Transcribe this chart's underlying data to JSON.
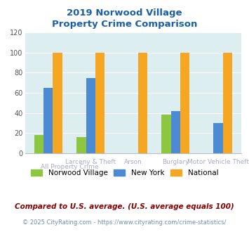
{
  "title_line1": "2019 Norwood Village",
  "title_line2": "Property Crime Comparison",
  "categories": [
    "All Property Crime",
    "Larceny & Theft",
    "Arson",
    "Burglary",
    "Motor Vehicle Theft"
  ],
  "series": {
    "Norwood Village": [
      18,
      16,
      0,
      38,
      0
    ],
    "New York": [
      65,
      75,
      0,
      42,
      30
    ],
    "National": [
      100,
      100,
      100,
      100,
      100
    ]
  },
  "colors": {
    "Norwood Village": "#8dc63f",
    "New York": "#4c8bd4",
    "National": "#f5a623"
  },
  "ylim": [
    0,
    120
  ],
  "yticks": [
    0,
    20,
    40,
    60,
    80,
    100,
    120
  ],
  "bg_color": "#ddeef0",
  "footnote1": "Compared to U.S. average. (U.S. average equals 100)",
  "footnote2": "© 2025 CityRating.com - https://www.cityrating.com/crime-statistics/",
  "title_color": "#1a5fa8",
  "footnote1_color": "#8b0000",
  "footnote2_color": "#7090b0",
  "xlabel_color": "#aaaacc",
  "bar_width": 0.22
}
